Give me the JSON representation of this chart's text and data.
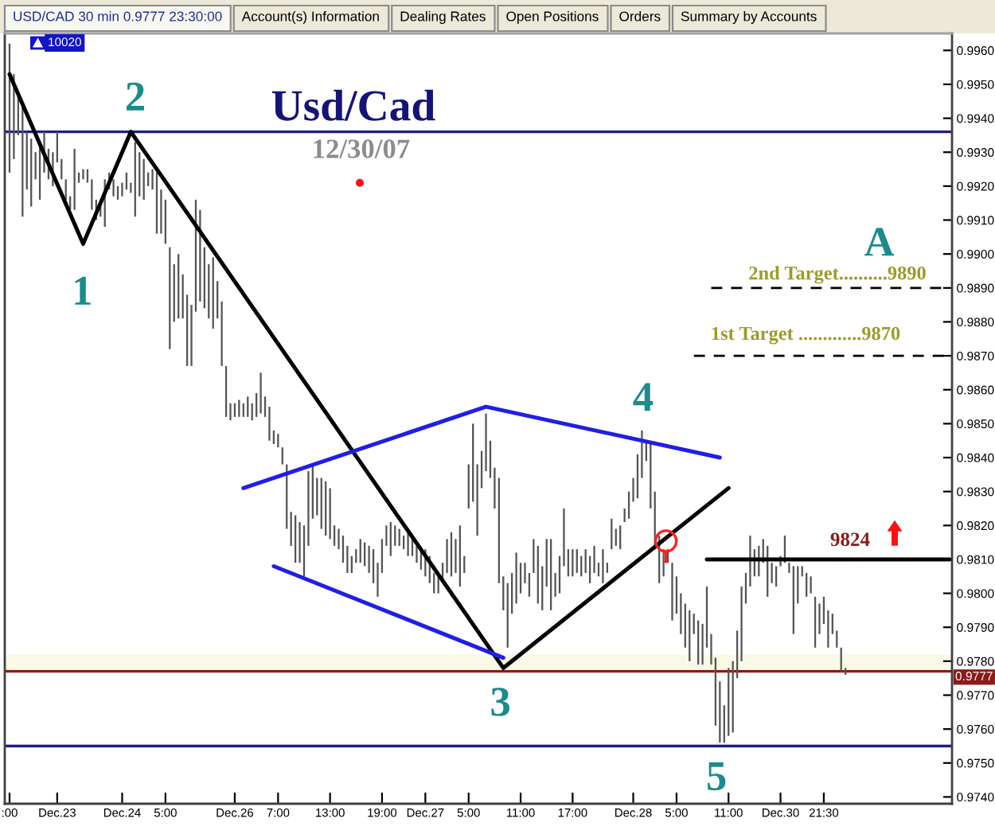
{
  "chart_data": {
    "type": "bar",
    "title": "Usd/Cad",
    "subtitle": "12/30/07",
    "categories": [
      ":00",
      null,
      null,
      null,
      null,
      null,
      null,
      null,
      null,
      null,
      null,
      "Dec.23",
      null,
      null,
      null,
      null,
      null,
      null,
      null,
      null,
      null,
      null,
      null,
      null,
      null,
      null,
      "Dec.24",
      null,
      null,
      null,
      null,
      null,
      null,
      null,
      null,
      null,
      "5:00",
      null,
      null,
      null,
      null,
      null,
      null,
      null,
      null,
      null,
      null,
      null,
      null,
      null,
      null,
      null,
      "Dec.26",
      null,
      null,
      null,
      null,
      null,
      null,
      null,
      null,
      null,
      "7:00",
      null,
      null,
      null,
      null,
      null,
      null,
      null,
      null,
      null,
      null,
      null,
      "13:00",
      null,
      null,
      null,
      null,
      null,
      null,
      null,
      null,
      null,
      null,
      null,
      "19:00",
      null,
      null,
      null,
      null,
      null,
      null,
      null,
      null,
      null,
      "Dec.27",
      null,
      null,
      null,
      null,
      null,
      null,
      null,
      null,
      null,
      "5:00",
      null,
      null,
      null,
      null,
      null,
      null,
      null,
      null,
      null,
      null,
      null,
      "11:00",
      null,
      null,
      null,
      null,
      null,
      null,
      null,
      null,
      null,
      null,
      null,
      "17:00",
      null,
      null,
      null,
      null,
      null,
      null,
      null,
      null,
      null,
      null,
      null,
      null,
      null,
      "Dec.28",
      null,
      null,
      null,
      null,
      null,
      null,
      null,
      null,
      null,
      "5:00",
      null,
      null,
      null,
      null,
      null,
      null,
      null,
      null,
      null,
      null,
      null,
      "11:00",
      null,
      null,
      null,
      null,
      null,
      null,
      null,
      null,
      null,
      null,
      null,
      "Dec.30",
      null,
      null,
      null,
      null,
      null,
      null,
      null,
      null,
      null,
      "21:30",
      null,
      null,
      null,
      null,
      null,
      null,
      null,
      null,
      null,
      null,
      null,
      null,
      null,
      null,
      null,
      null,
      null,
      null,
      null,
      null,
      null,
      null,
      null,
      null,
      null,
      null,
      null,
      null,
      null
    ],
    "ylim": [
      0.9738,
      0.9965
    ],
    "yticks": [
      {
        "value": 0.974,
        "label": "0.9740"
      },
      {
        "value": 0.975,
        "label": "0.9750"
      },
      {
        "value": 0.976,
        "label": "0.9760"
      },
      {
        "value": 0.977,
        "label": "0.9770"
      },
      {
        "value": 0.978,
        "label": "0.9780"
      },
      {
        "value": 0.979,
        "label": "0.9790"
      },
      {
        "value": 0.98,
        "label": "0.9800"
      },
      {
        "value": 0.981,
        "label": "0.9810"
      },
      {
        "value": 0.982,
        "label": "0.9820"
      },
      {
        "value": 0.983,
        "label": "0.9830"
      },
      {
        "value": 0.984,
        "label": "0.9840"
      },
      {
        "value": 0.985,
        "label": "0.9850"
      },
      {
        "value": 0.986,
        "label": "0.9860"
      },
      {
        "value": 0.987,
        "label": "0.9870"
      },
      {
        "value": 0.988,
        "label": "0.9880"
      },
      {
        "value": 0.989,
        "label": "0.9890"
      },
      {
        "value": 0.99,
        "label": "0.9900"
      },
      {
        "value": 0.991,
        "label": "0.9910"
      },
      {
        "value": 0.992,
        "label": "0.9920"
      },
      {
        "value": 0.993,
        "label": "0.9930"
      },
      {
        "value": 0.994,
        "label": "0.9940"
      },
      {
        "value": 0.995,
        "label": "0.9950"
      },
      {
        "value": 0.996,
        "label": "0.9960"
      }
    ],
    "series": [
      {
        "color": "#555555",
        "base": [
          0.9924,
          0.9928,
          0.9935,
          0.9911,
          0.9919,
          0.9914,
          0.9922,
          0.9916,
          0.9924,
          0.9922,
          0.992,
          0.9927,
          0.9922,
          0.9916,
          0.9913,
          0.9913,
          0.9921,
          0.9922,
          0.9921,
          0.9913,
          0.991,
          0.9911,
          0.9908,
          0.9919,
          0.9917,
          0.9916,
          0.9917,
          0.9919,
          0.9918,
          0.9911,
          0.9917,
          0.9916,
          0.992,
          0.9919,
          0.9906,
          0.9906,
          0.9903,
          0.9872,
          0.988,
          0.9881,
          0.9881,
          0.9867,
          0.9867,
          0.9883,
          0.9886,
          0.9884,
          0.9881,
          0.9878,
          0.9881,
          0.9867,
          0.9852,
          0.9851,
          0.9852,
          0.9852,
          0.9852,
          0.9852,
          0.9851,
          0.9852,
          0.9853,
          0.9852,
          0.9845,
          0.9844,
          0.9843,
          0.9838,
          0.9819,
          0.9814,
          0.9809,
          0.9809,
          0.9805,
          0.9814,
          0.9822,
          0.9823,
          0.9819,
          0.9817,
          0.9816,
          0.9814,
          0.9813,
          0.9809,
          0.9806,
          0.9806,
          0.9809,
          0.9809,
          0.9808,
          0.9806,
          0.9803,
          0.9799,
          0.9806,
          0.9814,
          0.9811,
          0.9814,
          0.9814,
          0.9813,
          0.9811,
          0.9811,
          0.9809,
          0.9807,
          0.9805,
          0.9803,
          0.98,
          0.98,
          0.9803,
          0.9806,
          0.9805,
          0.9806,
          0.9802,
          0.9806,
          0.9825,
          0.9827,
          0.9817,
          0.9831,
          0.9836,
          0.9834,
          0.9825,
          0.9803,
          0.9795,
          0.9784,
          0.9794,
          0.9797,
          0.98,
          0.9803,
          0.9799,
          0.9806,
          0.9797,
          0.9795,
          0.9802,
          0.9795,
          0.9799,
          0.98,
          0.9808,
          0.9805,
          0.9805,
          0.9806,
          0.9805,
          0.9806,
          0.9803,
          0.9806,
          0.9805,
          0.9803,
          0.9806,
          0.9813,
          0.9814,
          0.9813,
          0.9821,
          0.9822,
          0.9827,
          0.9828,
          0.9834,
          0.9839,
          0.9825,
          0.9813,
          0.9803,
          0.9805,
          0.9809,
          0.9792,
          0.9794,
          0.9788,
          0.9784,
          0.978,
          0.9788,
          0.9779,
          0.9779,
          0.9784,
          0.9779,
          0.9761,
          0.9756,
          0.9756,
          0.9758,
          0.9759,
          0.9775,
          0.978,
          0.9797,
          0.9802,
          0.9805,
          0.9805,
          0.9809,
          0.9799,
          0.9803,
          0.9802,
          0.9808,
          0.9809,
          0.9806,
          0.9788,
          0.9797,
          0.9805,
          0.9799,
          0.98,
          0.9784,
          0.9788,
          0.9791,
          0.9784,
          0.9788,
          0.9784,
          0.9777,
          0.9776,
          null,
          null,
          null,
          null,
          null,
          null,
          null,
          null,
          null,
          null,
          null,
          null,
          null,
          null,
          null,
          null,
          null,
          null,
          null,
          null,
          null,
          null,
          null,
          null
        ],
        "values": [
          0.0038,
          0.0025,
          0.0012,
          0.0033,
          0.0017,
          0.002,
          0.0008,
          0.0017,
          0.0012,
          0.0009,
          0.001,
          0.0009,
          0.0006,
          0.0006,
          0.0004,
          0.0018,
          0.0003,
          0.0003,
          0.0004,
          0.0009,
          0.0006,
          0.0004,
          0.0014,
          0.0005,
          0.0005,
          0.0004,
          0.0004,
          0.0005,
          0.0003,
          0.0022,
          0.0013,
          0.0012,
          0.0004,
          0.0006,
          0.0018,
          0.0013,
          0.0013,
          0.003,
          0.0017,
          0.0019,
          0.0013,
          0.0021,
          0.0018,
          0.0033,
          0.0027,
          0.0018,
          0.0016,
          0.0021,
          0.0011,
          0.0019,
          0.0015,
          0.0005,
          0.0004,
          0.0005,
          0.0004,
          0.0006,
          0.0005,
          0.0007,
          0.0012,
          0.0006,
          0.001,
          0.0004,
          0.0004,
          0.0005,
          0.0019,
          0.001,
          0.0014,
          0.0012,
          0.0015,
          0.0022,
          0.0016,
          0.0011,
          0.0015,
          0.0016,
          0.0015,
          0.0006,
          0.0006,
          0.0008,
          0.0008,
          0.0005,
          0.0004,
          0.0007,
          0.0007,
          0.0008,
          0.001,
          0.001,
          0.001,
          0.0006,
          0.001,
          0.0006,
          0.0005,
          0.0004,
          0.0008,
          0.0005,
          0.0005,
          0.0006,
          0.0008,
          0.0008,
          0.0006,
          0.0005,
          0.0006,
          0.001,
          0.0013,
          0.001,
          0.0018,
          0.0005,
          0.0013,
          0.0023,
          0.0021,
          0.0011,
          0.0017,
          0.0011,
          0.0012,
          0.0031,
          0.001,
          0.0019,
          0.0012,
          0.0015,
          0.0009,
          0.0006,
          0.0007,
          0.001,
          0.0017,
          0.0013,
          0.0014,
          0.0021,
          0.0007,
          0.0011,
          0.0017,
          0.0008,
          0.0008,
          0.0007,
          0.0006,
          0.0007,
          0.0008,
          0.0008,
          0.0004,
          0.001,
          0.0003,
          0.0009,
          0.0005,
          0.0007,
          0.0004,
          0.0008,
          0.0007,
          0.0013,
          0.0014,
          0.0006,
          0.0019,
          0.0017,
          0.0014,
          0.0008,
          0.0004,
          0.0017,
          0.0011,
          0.0012,
          0.0013,
          0.0015,
          0.0006,
          0.0013,
          0.0012,
          0.0018,
          0.0009,
          0.002,
          0.0018,
          0.0011,
          0.002,
          0.0021,
          0.0014,
          0.0022,
          0.0009,
          0.0015,
          0.0008,
          0.0009,
          0.0007,
          0.0015,
          0.0006,
          0.0006,
          0.0003,
          0.0008,
          0.0003,
          0.002,
          0.0011,
          0.0003,
          0.0007,
          0.0005,
          0.0015,
          0.0009,
          0.0008,
          0.0011,
          0.0006,
          0.0005,
          0.0007,
          0.0002,
          null,
          null,
          null,
          null,
          null,
          null,
          null,
          null,
          null,
          null,
          null,
          null,
          null,
          null,
          null,
          null,
          null,
          null,
          null,
          null,
          null,
          null,
          null,
          null
        ]
      },
      {
        "type": "line",
        "color": "#000000",
        "values": [
          0.9953,
          null,
          null,
          null,
          null,
          null,
          null,
          null,
          null,
          null,
          null,
          null,
          null,
          null,
          null,
          null,
          null,
          0.9903,
          null,
          null,
          null,
          null,
          null,
          null,
          null,
          null,
          null,
          null,
          0.9936,
          null,
          null,
          null,
          null,
          null,
          null,
          null,
          null,
          null,
          null,
          null,
          null,
          null,
          null,
          null,
          null,
          null,
          null,
          null,
          null,
          null,
          null,
          null,
          null,
          null,
          null,
          null,
          null,
          null,
          null,
          null,
          null,
          null,
          null,
          null,
          null,
          null,
          null,
          null,
          null,
          null,
          null,
          null,
          null,
          null,
          null,
          null,
          null,
          null,
          null,
          null,
          null,
          null,
          null,
          null,
          null,
          null,
          null,
          null,
          null,
          null,
          null,
          null,
          null,
          null,
          null,
          null,
          null,
          null,
          null,
          null,
          null,
          null,
          null,
          null,
          null,
          null,
          null,
          null,
          null,
          null,
          null,
          null,
          null,
          null,
          0.9778,
          null,
          null,
          null,
          null,
          null,
          null,
          null,
          null,
          null,
          null,
          null,
          null,
          null,
          null,
          null,
          null,
          null,
          null,
          null,
          null,
          null,
          null,
          null,
          null,
          null,
          null,
          null,
          null,
          null,
          null,
          null,
          null,
          null,
          null,
          null,
          null,
          null,
          null,
          null,
          null,
          null,
          null,
          null,
          null,
          null,
          null,
          null,
          null,
          null,
          null,
          null,
          0.9831,
          null,
          null,
          null,
          null,
          null,
          null,
          null,
          null,
          null,
          null,
          null,
          null,
          null,
          null,
          null,
          null,
          null,
          null,
          null,
          null,
          null,
          null,
          null,
          null,
          null,
          null,
          null,
          null,
          null,
          null,
          null,
          null,
          null,
          null,
          null,
          null,
          null,
          null,
          null,
          null,
          null,
          null,
          null,
          null,
          null,
          null,
          null,
          null,
          null,
          null,
          null
        ]
      },
      {
        "type": "line",
        "color": "#1f1fe6",
        "values": [
          null,
          null,
          null,
          null,
          null,
          null,
          null,
          null,
          null,
          null,
          null,
          null,
          null,
          null,
          null,
          null,
          null,
          null,
          null,
          null,
          null,
          null,
          null,
          null,
          null,
          null,
          null,
          null,
          null,
          null,
          null,
          null,
          null,
          null,
          null,
          null,
          null,
          null,
          null,
          null,
          null,
          null,
          null,
          null,
          null,
          null,
          null,
          null,
          null,
          null,
          null,
          null,
          null,
          null,
          0.9831,
          null,
          null,
          null,
          null,
          null,
          null,
          null,
          null,
          null,
          null,
          null,
          null,
          null,
          null,
          null,
          null,
          null,
          null,
          null,
          null,
          null,
          null,
          null,
          null,
          null,
          null,
          null,
          null,
          null,
          null,
          null,
          null,
          null,
          null,
          null,
          null,
          null,
          null,
          null,
          null,
          null,
          null,
          null,
          null,
          null,
          null,
          null,
          null,
          null,
          null,
          null,
          null,
          null,
          null,
          null,
          0.9855,
          null,
          null,
          null,
          null,
          null,
          null,
          null,
          null,
          null,
          null,
          null,
          null,
          null,
          null,
          null,
          null,
          null,
          null,
          null,
          null,
          null,
          null,
          null,
          null,
          null,
          null,
          null,
          null,
          null,
          null,
          null,
          null,
          null,
          null,
          null,
          null,
          null,
          null,
          null,
          null,
          null,
          null,
          null,
          null,
          null,
          null,
          null,
          null,
          null,
          null,
          null,
          null,
          null,
          0.984,
          null,
          null,
          null,
          null,
          null,
          null,
          null,
          null,
          null,
          null,
          null,
          null,
          null,
          null,
          null,
          null,
          null,
          null,
          null,
          null,
          null,
          null,
          null,
          null,
          null,
          null,
          null,
          null,
          null,
          null,
          null,
          null,
          null,
          null,
          null,
          null,
          null,
          null,
          null,
          null,
          null,
          null,
          null,
          null,
          null,
          null,
          null,
          null,
          null,
          null,
          null,
          null,
          null
        ]
      },
      {
        "type": "line",
        "color": "#1f1fe6",
        "values": [
          null,
          null,
          null,
          null,
          null,
          null,
          null,
          null,
          null,
          null,
          null,
          null,
          null,
          null,
          null,
          null,
          null,
          null,
          null,
          null,
          null,
          null,
          null,
          null,
          null,
          null,
          null,
          null,
          null,
          null,
          null,
          null,
          null,
          null,
          null,
          null,
          null,
          null,
          null,
          null,
          null,
          null,
          null,
          null,
          null,
          null,
          null,
          null,
          null,
          null,
          null,
          null,
          null,
          null,
          null,
          null,
          null,
          null,
          null,
          null,
          null,
          0.9808,
          null,
          null,
          null,
          null,
          null,
          null,
          null,
          null,
          null,
          null,
          null,
          null,
          null,
          null,
          null,
          null,
          null,
          null,
          null,
          null,
          null,
          null,
          null,
          null,
          null,
          null,
          null,
          null,
          null,
          null,
          null,
          null,
          null,
          null,
          null,
          null,
          null,
          null,
          null,
          null,
          null,
          null,
          null,
          null,
          null,
          null,
          null,
          null,
          null,
          null,
          null,
          null,
          0.9781,
          null,
          null,
          null,
          null,
          null,
          null,
          null,
          null,
          null,
          null,
          null,
          null,
          null,
          null,
          null,
          null,
          null,
          null,
          null,
          null,
          null,
          null,
          null,
          null,
          null,
          null,
          null,
          null,
          null,
          null,
          null,
          null,
          null,
          null,
          null,
          null,
          null,
          null,
          null,
          null,
          null,
          null,
          null,
          null,
          null,
          null,
          null,
          null,
          null,
          null,
          null,
          null,
          null,
          null,
          null,
          null,
          null,
          null,
          null,
          null,
          null,
          null,
          null,
          null,
          null,
          null,
          null,
          null,
          null,
          null,
          null,
          null,
          null,
          null,
          null,
          null,
          null,
          null,
          null,
          null,
          null,
          null,
          null,
          null,
          null,
          null,
          null,
          null,
          null,
          null,
          null,
          null,
          null,
          null,
          null,
          null,
          null,
          null,
          null,
          null,
          null,
          null,
          null
        ]
      },
      {
        "type": "line",
        "color": "#000000",
        "values": [
          null,
          null,
          null,
          null,
          null,
          null,
          null,
          null,
          null,
          null,
          null,
          null,
          null,
          null,
          null,
          null,
          null,
          null,
          null,
          null,
          null,
          null,
          null,
          null,
          null,
          null,
          null,
          null,
          null,
          null,
          null,
          null,
          null,
          null,
          null,
          null,
          null,
          null,
          null,
          null,
          null,
          null,
          null,
          null,
          null,
          null,
          null,
          null,
          null,
          null,
          null,
          null,
          null,
          null,
          null,
          null,
          null,
          null,
          null,
          null,
          null,
          null,
          null,
          null,
          null,
          null,
          null,
          null,
          null,
          null,
          null,
          null,
          null,
          null,
          null,
          null,
          null,
          null,
          null,
          null,
          null,
          null,
          null,
          null,
          null,
          null,
          null,
          null,
          null,
          null,
          null,
          null,
          null,
          null,
          null,
          null,
          null,
          null,
          null,
          null,
          null,
          null,
          null,
          null,
          null,
          null,
          null,
          null,
          null,
          null,
          null,
          null,
          null,
          null,
          null,
          null,
          null,
          null,
          null,
          null,
          null,
          null,
          null,
          null,
          null,
          null,
          null,
          null,
          null,
          null,
          null,
          null,
          null,
          null,
          null,
          null,
          null,
          null,
          null,
          null,
          null,
          null,
          null,
          null,
          null,
          null,
          null,
          null,
          null,
          null,
          null,
          null,
          null,
          null,
          null,
          null,
          null,
          null,
          null,
          null,
          null,
          0.981,
          null,
          null,
          null,
          null,
          null,
          null,
          null,
          null,
          null,
          null,
          null,
          null,
          null,
          null,
          null,
          null,
          null,
          null,
          null,
          null,
          null,
          null,
          null,
          null,
          null,
          null,
          null,
          null,
          null,
          null,
          null,
          null,
          null,
          null,
          null,
          null,
          null,
          null,
          null,
          null,
          null,
          null,
          null,
          null,
          null,
          null,
          null,
          null,
          null,
          null,
          null,
          null,
          null,
          null,
          null,
          0.981
        ]
      },
      {
        "type": "line",
        "color": "#000000",
        "line_style": "dashed",
        "values": [
          null,
          null,
          null,
          null,
          null,
          null,
          null,
          null,
          null,
          null,
          null,
          null,
          null,
          null,
          null,
          null,
          null,
          null,
          null,
          null,
          null,
          null,
          null,
          null,
          null,
          null,
          null,
          null,
          null,
          null,
          null,
          null,
          null,
          null,
          null,
          null,
          null,
          null,
          null,
          null,
          null,
          null,
          null,
          null,
          null,
          null,
          null,
          null,
          null,
          null,
          null,
          null,
          null,
          null,
          null,
          null,
          null,
          null,
          null,
          null,
          null,
          null,
          null,
          null,
          null,
          null,
          null,
          null,
          null,
          null,
          null,
          null,
          null,
          null,
          null,
          null,
          null,
          null,
          null,
          null,
          null,
          null,
          null,
          null,
          null,
          null,
          null,
          null,
          null,
          null,
          null,
          null,
          null,
          null,
          null,
          null,
          null,
          null,
          null,
          null,
          null,
          null,
          null,
          null,
          null,
          null,
          null,
          null,
          null,
          null,
          null,
          null,
          null,
          null,
          null,
          null,
          null,
          null,
          null,
          null,
          null,
          null,
          null,
          null,
          null,
          null,
          null,
          null,
          null,
          null,
          null,
          null,
          null,
          null,
          null,
          null,
          null,
          null,
          null,
          null,
          null,
          null,
          null,
          null,
          null,
          null,
          null,
          null,
          null,
          null,
          null,
          null,
          null,
          null,
          null,
          null,
          null,
          null,
          null,
          null,
          null,
          null,
          0.989,
          null,
          null,
          null,
          null,
          null,
          null,
          null,
          null,
          null,
          null,
          null,
          null,
          null,
          null,
          null,
          null,
          null,
          null,
          null,
          null,
          null,
          null,
          null,
          null,
          null,
          null,
          null,
          null,
          null,
          null,
          null,
          null,
          null,
          null,
          null,
          null,
          null,
          null,
          null,
          null,
          null,
          null,
          null,
          null,
          null,
          null,
          null,
          null,
          null,
          null,
          null,
          null,
          null,
          null,
          0.989
        ]
      },
      {
        "type": "line",
        "color": "#000000",
        "line_style": "dashed",
        "values": [
          null,
          null,
          null,
          null,
          null,
          null,
          null,
          null,
          null,
          null,
          null,
          null,
          null,
          null,
          null,
          null,
          null,
          null,
          null,
          null,
          null,
          null,
          null,
          null,
          null,
          null,
          null,
          null,
          null,
          null,
          null,
          null,
          null,
          null,
          null,
          null,
          null,
          null,
          null,
          null,
          null,
          null,
          null,
          null,
          null,
          null,
          null,
          null,
          null,
          null,
          null,
          null,
          null,
          null,
          null,
          null,
          null,
          null,
          null,
          null,
          null,
          null,
          null,
          null,
          null,
          null,
          null,
          null,
          null,
          null,
          null,
          null,
          null,
          null,
          null,
          null,
          null,
          null,
          null,
          null,
          null,
          null,
          null,
          null,
          null,
          null,
          null,
          null,
          null,
          null,
          null,
          null,
          null,
          null,
          null,
          null,
          null,
          null,
          null,
          null,
          null,
          null,
          null,
          null,
          null,
          null,
          null,
          null,
          null,
          null,
          null,
          null,
          null,
          null,
          null,
          null,
          null,
          null,
          null,
          null,
          null,
          null,
          null,
          null,
          null,
          null,
          null,
          null,
          null,
          null,
          null,
          null,
          null,
          null,
          null,
          null,
          null,
          null,
          null,
          null,
          null,
          null,
          null,
          null,
          null,
          null,
          null,
          null,
          null,
          null,
          null,
          null,
          null,
          null,
          null,
          null,
          null,
          null,
          0.987,
          null,
          null,
          null,
          null,
          null,
          null,
          null,
          null,
          null,
          null,
          null,
          null,
          null,
          null,
          null,
          null,
          null,
          null,
          null,
          null,
          null,
          null,
          null,
          null,
          null,
          null,
          null,
          null,
          null,
          null,
          null,
          null,
          null,
          null,
          null,
          null,
          null,
          null,
          null,
          null,
          null,
          null,
          null,
          null,
          null,
          null,
          null,
          null,
          null,
          null,
          null,
          null,
          null,
          null,
          null,
          null,
          null,
          null,
          0.987
        ]
      }
    ],
    "ref_lines": [
      {
        "axis": "y",
        "value": 0.9936,
        "color": "#1c1c8c"
      },
      {
        "axis": "y",
        "value": 0.9755,
        "color": "#1c1c8c"
      },
      {
        "axis": "y",
        "value": 0.9777,
        "label": "0.9777",
        "color": "#8b1a1a"
      }
    ],
    "bands": [
      {
        "axis": "y",
        "from": 0.9777,
        "to": 0.9782,
        "color": "#fafae6"
      }
    ],
    "annotations": [
      "USD/CAD 30 min 0.9777 23:30:00",
      "Account(s) Information",
      "Dealing Rates",
      "Open Positions",
      "Orders",
      "Summary by Accounts",
      "10020",
      "2",
      "1",
      "A",
      "2nd Target..........9890",
      "1st Target .............9870",
      "4",
      "9824",
      "3",
      "5"
    ]
  }
}
